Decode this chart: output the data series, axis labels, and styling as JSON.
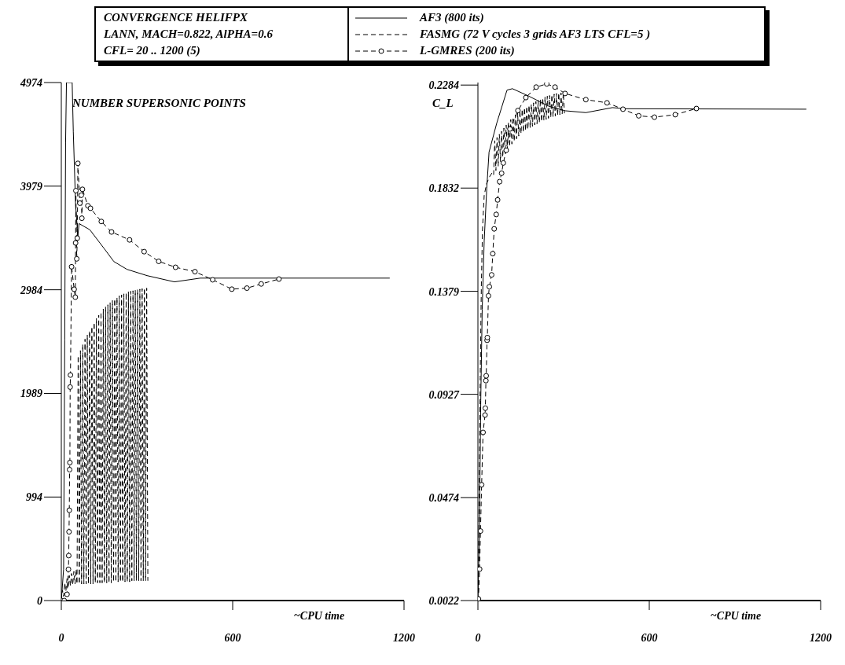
{
  "chart_data": [
    {
      "type": "line",
      "title": "CONVERGENCE HELIFPX",
      "subtitle": "LANN, MACH=0.822, AlPHA=0.6",
      "annotations": [
        "CFL= 20 .. 1200 (5)"
      ],
      "xlabel": "~CPU time",
      "ylabel": "NUMBER SUPERSONIC POINTS",
      "xlim": [
        0,
        1200
      ],
      "xticks": [
        0,
        600,
        1200
      ],
      "ylim": [
        0,
        4974
      ],
      "yticks": [
        0,
        994,
        1989,
        2984,
        3979,
        4974
      ],
      "legend": "top",
      "series": [
        {
          "name": "AF3 (800 its)",
          "color": "#000000",
          "line_style": "solid",
          "marker": "none",
          "x": [
            0,
            8,
            12,
            15,
            18,
            38,
            42,
            50,
            58,
            62,
            100,
            150,
            184,
            230,
            300,
            396,
            487,
            1150
          ],
          "values": [
            0,
            300,
            2500,
            4400,
            4974,
            4974,
            4500,
            3800,
            3500,
            3620,
            3560,
            3380,
            3255,
            3180,
            3120,
            3060,
            3096,
            3096
          ]
        },
        {
          "name": "FASMG (72 V cycles 3 grids AF3 LTS CFL=5 )",
          "color": "#000000",
          "line_style": "dashed",
          "marker": "none",
          "x": [
            0,
            4,
            8,
            12,
            16,
            20,
            24,
            28,
            32,
            36,
            40,
            44,
            48,
            52,
            55,
            59,
            63,
            67,
            71,
            75,
            79,
            83,
            87,
            91,
            95,
            99,
            103,
            107,
            111,
            115,
            119,
            123,
            127,
            131,
            135,
            139,
            143,
            147,
            151,
            155,
            159,
            163,
            167,
            171,
            175,
            179,
            183,
            187,
            191,
            195,
            199,
            203,
            207,
            211,
            215,
            219,
            223,
            227,
            231,
            235,
            239,
            243,
            247,
            251,
            255,
            259,
            263,
            267,
            271,
            275,
            279,
            283,
            287,
            291,
            295,
            299,
            303
          ],
          "values": [
            0,
            100,
            40,
            170,
            90,
            210,
            120,
            240,
            140,
            260,
            150,
            280,
            160,
            300,
            160,
            2350,
            160,
            2400,
            160,
            2460,
            160,
            2510,
            160,
            2550,
            160,
            2590,
            160,
            2630,
            160,
            2670,
            170,
            2710,
            170,
            2740,
            170,
            2770,
            170,
            2800,
            170,
            2820,
            170,
            2840,
            170,
            2860,
            170,
            2880,
            180,
            2895,
            180,
            2910,
            180,
            2925,
            180,
            2935,
            180,
            2945,
            180,
            2955,
            180,
            2965,
            180,
            2970,
            190,
            2975,
            190,
            2980,
            190,
            2985,
            190,
            2990,
            190,
            2995,
            190,
            3000,
            190,
            3000,
            190
          ]
        },
        {
          "name": "L-GMRES (200 its)",
          "color": "#000000",
          "line_style": "dashed",
          "marker": "circle",
          "x": [
            0,
            10,
            20,
            25,
            26,
            27,
            28,
            29,
            30,
            31,
            32,
            36,
            45,
            49,
            50,
            51,
            54,
            56,
            58,
            65,
            70,
            72,
            74,
            93,
            102,
            140,
            176,
            239,
            290,
            341,
            400,
            468,
            530,
            597,
            650,
            700,
            762
          ],
          "values": [
            0,
            0,
            60,
            300,
            431,
            660,
            867,
            1257,
            1325,
            2050,
            2165,
            3205,
            2989,
            2913,
            3434,
            3936,
            3281,
            3480,
            4198,
            3816,
            3892,
            3671,
            3949,
            3791,
            3767,
            3640,
            3539,
            3463,
            3350,
            3257,
            3200,
            3158,
            3080,
            2990,
            3000,
            3040,
            3087
          ]
        }
      ]
    },
    {
      "type": "line",
      "xlabel": "~CPU time",
      "ylabel": "C_L",
      "xlim": [
        0,
        1200
      ],
      "xticks": [
        0,
        600,
        1200
      ],
      "ylim": [
        0.0022,
        0.2295
      ],
      "yticks": [
        0.0022,
        0.0474,
        0.0927,
        0.1379,
        0.1832,
        0.2284
      ],
      "series": [
        {
          "color": "#000000",
          "line_style": "solid",
          "marker": "none",
          "x": [
            0,
            5,
            10,
            15,
            22,
            31,
            39,
            66,
            102,
            121,
            177,
            250,
            306,
            378,
            471,
            516,
            1150
          ],
          "values": [
            0.0022,
            0.03,
            0.09,
            0.13,
            0.16,
            0.1832,
            0.199,
            0.2117,
            0.2262,
            0.2268,
            0.2236,
            0.219,
            0.2171,
            0.2163,
            0.2185,
            0.218,
            0.2178
          ]
        },
        {
          "color": "#000000",
          "line_style": "dashed",
          "marker": "none",
          "x": [
            0,
            4,
            8,
            12,
            16,
            22,
            30,
            40,
            50,
            55,
            59,
            63,
            67,
            71,
            75,
            79,
            83,
            87,
            91,
            95,
            99,
            103,
            107,
            111,
            115,
            119,
            123,
            127,
            131,
            135,
            139,
            143,
            147,
            151,
            155,
            159,
            163,
            167,
            171,
            175,
            179,
            183,
            187,
            191,
            195,
            199,
            203,
            207,
            211,
            215,
            219,
            223,
            227,
            231,
            235,
            239,
            243,
            247,
            251,
            255,
            259,
            263,
            267,
            271,
            275,
            279,
            283,
            287,
            291,
            295,
            299,
            303
          ],
          "values": [
            0.0022,
            0.04,
            0.1,
            0.14,
            0.165,
            0.18,
            0.185,
            0.188,
            0.19,
            0.189,
            0.204,
            0.1909,
            0.2054,
            0.1928,
            0.2068,
            0.1948,
            0.2081,
            0.1967,
            0.2095,
            0.1986,
            0.2108,
            0.2002,
            0.2121,
            0.2014,
            0.2133,
            0.2025,
            0.2143,
            0.2037,
            0.2152,
            0.2048,
            0.2162,
            0.206,
            0.2172,
            0.2071,
            0.2178,
            0.2077,
            0.2184,
            0.2084,
            0.219,
            0.209,
            0.2195,
            0.2096,
            0.22,
            0.2103,
            0.2206,
            0.2109,
            0.2212,
            0.2114,
            0.2217,
            0.2119,
            0.2222,
            0.2124,
            0.2227,
            0.2129,
            0.2232,
            0.2133,
            0.2235,
            0.2138,
            0.2238,
            0.2142,
            0.2241,
            0.2145,
            0.2244,
            0.2148,
            0.2247,
            0.2151,
            0.2249,
            0.2154,
            0.225,
            0.2157,
            0.225,
            0.216
          ]
        },
        {
          "color": "#000000",
          "line_style": "dashed",
          "marker": "circle",
          "x": [
            0,
            2,
            6,
            9,
            13,
            18,
            25,
            26,
            28,
            29,
            32,
            33,
            37,
            40,
            48,
            52,
            57,
            64,
            69,
            76,
            83,
            89,
            99,
            112,
            140,
            168,
            204,
            241,
            270,
            305,
            378,
            452,
            508,
            563,
            618,
            691,
            765
          ],
          "values": [
            0.0022,
            0.0029,
            0.016,
            0.0327,
            0.053,
            0.076,
            0.0836,
            0.0866,
            0.0987,
            0.1008,
            0.1164,
            0.1176,
            0.1359,
            0.1399,
            0.1451,
            0.1544,
            0.1653,
            0.1716,
            0.178,
            0.186,
            0.1897,
            0.1942,
            0.1998,
            0.2091,
            0.2172,
            0.2229,
            0.2275,
            0.2289,
            0.2275,
            0.2247,
            0.222,
            0.2206,
            0.2178,
            0.2149,
            0.2143,
            0.2154,
            0.2181
          ]
        }
      ]
    }
  ]
}
